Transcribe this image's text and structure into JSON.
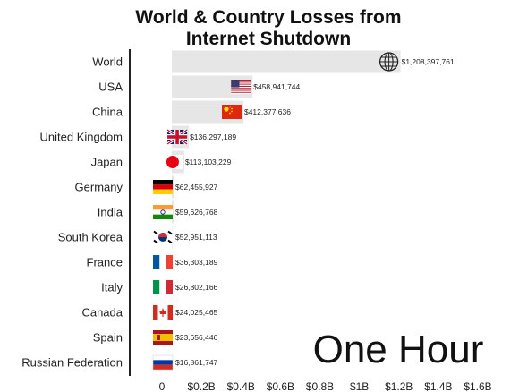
{
  "chart_data": {
    "type": "bar",
    "orientation": "horizontal",
    "title_lines": [
      "World & Country Losses from",
      "Internet Shutdown"
    ],
    "categories": [
      "World",
      "USA",
      "China",
      "United Kingdom",
      "Japan",
      "Germany",
      "India",
      "South Korea",
      "France",
      "Italy",
      "Canada",
      "Spain",
      "Russian Federation"
    ],
    "values": [
      1208397761,
      458941744,
      412377636,
      136297189,
      113103229,
      62455927,
      59626768,
      52951113,
      36303189,
      26802166,
      24025465,
      23656446,
      16861747
    ],
    "value_labels": [
      "$1,208,397,761",
      "$458,941,744",
      "$412,377,636",
      "$136,297,189",
      "$113,103,229",
      "$62,455,927",
      "$59,626,768",
      "$52,951,113",
      "$36,303,189",
      "$26,802,166",
      "$24,025,465",
      "$23,656,446",
      "$16,861,747"
    ],
    "icons": [
      "globe-icon",
      "flag-usa-icon",
      "flag-china-icon",
      "flag-uk-icon",
      "flag-japan-icon",
      "flag-germany-icon",
      "flag-india-icon",
      "flag-south-korea-icon",
      "flag-france-icon",
      "flag-italy-icon",
      "flag-canada-icon",
      "flag-spain-icon",
      "flag-russia-icon"
    ],
    "xticks": [
      0,
      200000000,
      400000000,
      600000000,
      800000000,
      1000000000,
      1200000000,
      1400000000,
      1600000000
    ],
    "xtick_labels": [
      "0",
      "$0.2B",
      "$0.4B",
      "$0.6B",
      "$0.8B",
      "$1B",
      "$1.2B",
      "$1.4B",
      "$1.6B"
    ],
    "xlim": [
      0,
      1600000000
    ],
    "annotation": "One Hour",
    "grid": false,
    "colors": {
      "bar": "#e6e6e6",
      "axis": "#222222",
      "text": "#222222"
    }
  }
}
